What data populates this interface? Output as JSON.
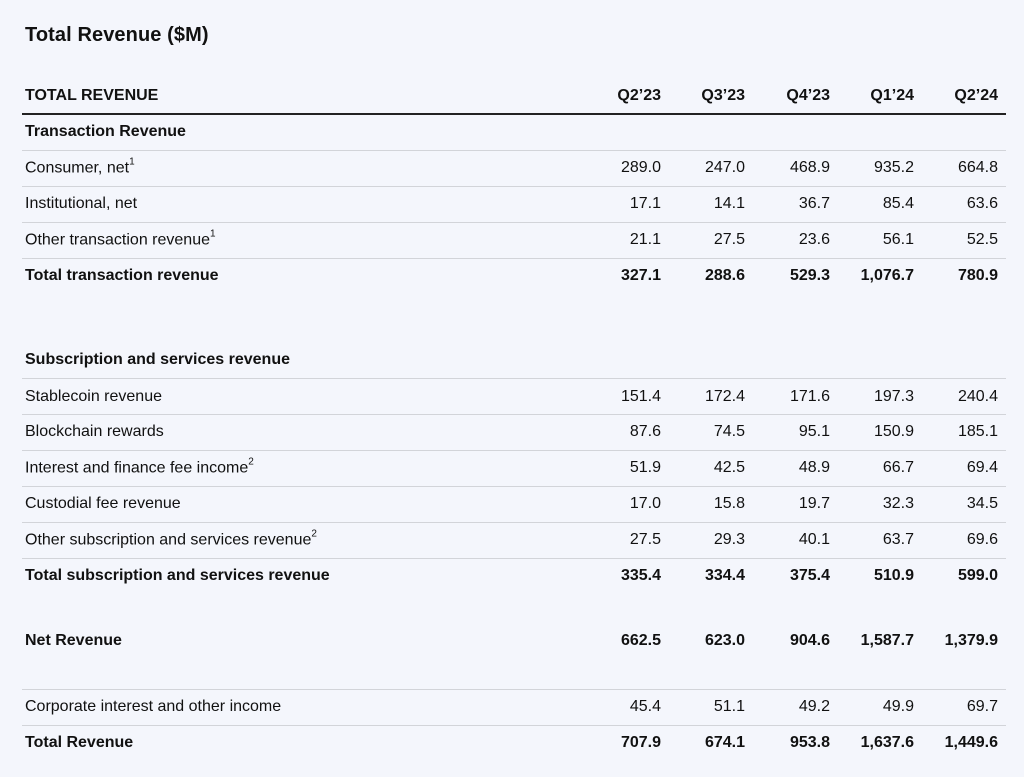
{
  "title": "Total Revenue ($M)",
  "header": {
    "label": "TOTAL REVENUE",
    "periods": [
      "Q2’23",
      "Q3’23",
      "Q4’23",
      "Q1’24",
      "Q2’24"
    ]
  },
  "transaction": {
    "section_label": "Transaction Revenue",
    "rows": [
      {
        "label": "Consumer, net",
        "note": "1",
        "values": [
          "289.0",
          "247.0",
          "468.9",
          "935.2",
          "664.8"
        ]
      },
      {
        "label": "Institutional, net",
        "note": "",
        "values": [
          "17.1",
          "14.1",
          "36.7",
          "85.4",
          "63.6"
        ]
      },
      {
        "label": "Other transaction revenue",
        "note": "1",
        "values": [
          "21.1",
          "27.5",
          "23.6",
          "56.1",
          "52.5"
        ]
      }
    ],
    "total": {
      "label": "Total transaction revenue",
      "values": [
        "327.1",
        "288.6",
        "529.3",
        "1,076.7",
        "780.9"
      ]
    }
  },
  "subscription": {
    "section_label": "Subscription and services revenue",
    "rows": [
      {
        "label": "Stablecoin revenue",
        "note": "",
        "values": [
          "151.4",
          "172.4",
          "171.6",
          "197.3",
          "240.4"
        ]
      },
      {
        "label": "Blockchain rewards",
        "note": "",
        "values": [
          "87.6",
          "74.5",
          "95.1",
          "150.9",
          "185.1"
        ]
      },
      {
        "label": "Interest and finance fee income",
        "note": "2",
        "values": [
          "51.9",
          "42.5",
          "48.9",
          "66.7",
          "69.4"
        ]
      },
      {
        "label": "Custodial fee revenue",
        "note": "",
        "values": [
          "17.0",
          "15.8",
          "19.7",
          "32.3",
          "34.5"
        ]
      },
      {
        "label": "Other subscription and services revenue",
        "note": "2",
        "values": [
          "27.5",
          "29.3",
          "40.1",
          "63.7",
          "69.6"
        ]
      }
    ],
    "total": {
      "label": "Total subscription and services revenue",
      "values": [
        "335.4",
        "334.4",
        "375.4",
        "510.9",
        "599.0"
      ]
    }
  },
  "net_revenue": {
    "label": "Net Revenue",
    "values": [
      "662.5",
      "623.0",
      "904.6",
      "1,587.7",
      "1,379.9"
    ]
  },
  "corporate": {
    "label": "Corporate interest and other income",
    "values": [
      "45.4",
      "51.1",
      "49.2",
      "49.9",
      "69.7"
    ]
  },
  "total_revenue": {
    "label": "Total Revenue",
    "values": [
      "707.9",
      "674.1",
      "953.8",
      "1,637.6",
      "1,449.6"
    ]
  }
}
